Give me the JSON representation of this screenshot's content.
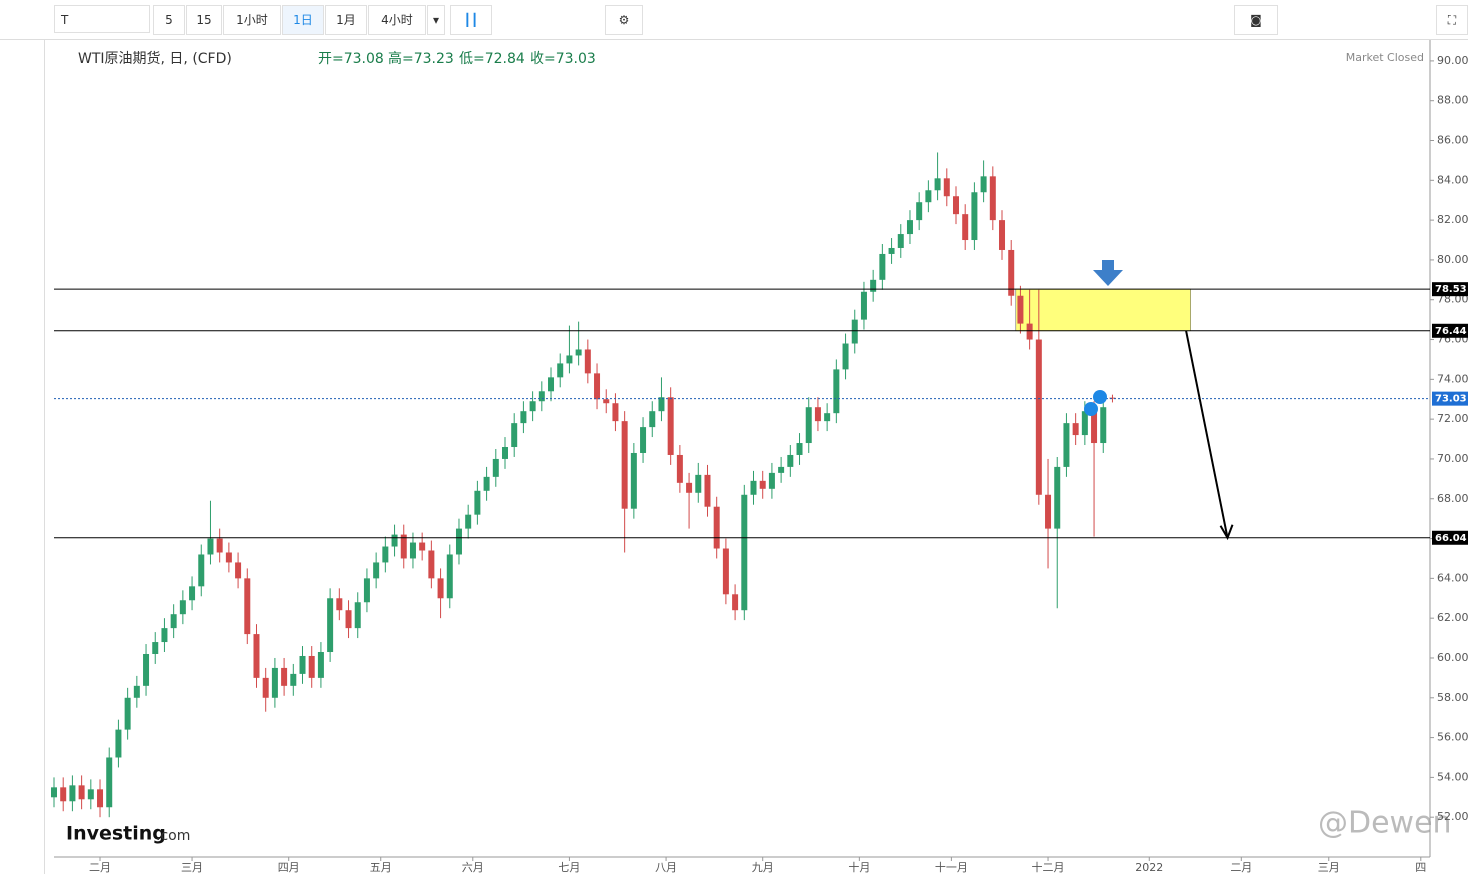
{
  "toolbar": {
    "symbol": "T",
    "intervals": [
      "5",
      "15",
      "1小时",
      "1日",
      "1月",
      "4小时"
    ]
  },
  "chart_data": {
    "type": "candlestick",
    "title": "WTI原油期货, 日, (CFD)",
    "ohlc_labels": [
      "开=73.08",
      "高=73.23",
      "低=72.84",
      "收=73.03"
    ],
    "status": "Market Closed",
    "watermark": [
      "Investing",
      ".com"
    ],
    "credit": "@Dewen",
    "up_color": "#2e9e6c",
    "down_color": "#d24a4a",
    "x": [
      0,
      2,
      4,
      6,
      8,
      10,
      12,
      14,
      16,
      18,
      20,
      22,
      24,
      26,
      28,
      30,
      32,
      34,
      36,
      38,
      40,
      42,
      44,
      46,
      48,
      50,
      52,
      54,
      56,
      58,
      60,
      62,
      64,
      66,
      68,
      70,
      72,
      74,
      76,
      78,
      80,
      82,
      84,
      86,
      88,
      90,
      92,
      94,
      96,
      98,
      100,
      102,
      104,
      106,
      108,
      110,
      112,
      114,
      116,
      118,
      120,
      122,
      124,
      126,
      128,
      130,
      132,
      134,
      136,
      138,
      140,
      142,
      144,
      146,
      148,
      150,
      152,
      154,
      156,
      158,
      160,
      162,
      164,
      166,
      168,
      170,
      172,
      174,
      176,
      178,
      180,
      182,
      184,
      186,
      188,
      190,
      192,
      194,
      196,
      198,
      200,
      202,
      204,
      206,
      208,
      210,
      212,
      214,
      216,
      218,
      220,
      222,
      224,
      226,
      228,
      230
    ],
    "open": [
      53.0,
      53.5,
      52.8,
      53.6,
      52.9,
      53.4,
      52.5,
      55.0,
      56.4,
      58.0,
      58.6,
      60.2,
      60.8,
      61.5,
      62.2,
      62.9,
      63.6,
      65.2,
      66.0,
      65.3,
      64.8,
      64.0,
      61.2,
      59.0,
      58.0,
      59.5,
      58.6,
      59.2,
      60.1,
      59.0,
      60.3,
      63.0,
      62.4,
      61.5,
      62.8,
      64.0,
      64.8,
      65.6,
      66.2,
      65.0,
      65.8,
      65.4,
      64.0,
      63.0,
      65.2,
      66.5,
      67.2,
      68.4,
      69.1,
      70.0,
      70.6,
      71.8,
      72.4,
      72.9,
      73.4,
      74.1,
      74.8,
      75.2,
      75.5,
      74.3,
      73.0,
      72.8,
      71.9,
      67.5,
      70.3,
      71.6,
      72.4,
      73.1,
      70.2,
      68.8,
      68.3,
      69.2,
      67.6,
      65.5,
      63.2,
      62.4,
      68.2,
      68.9,
      68.5,
      69.3,
      69.6,
      70.2,
      70.8,
      72.6,
      71.9,
      72.3,
      74.5,
      75.8,
      77.0,
      78.4,
      79.0,
      80.3,
      80.6,
      81.3,
      82.0,
      82.9,
      83.5,
      84.1,
      83.2,
      82.3,
      81.0,
      83.4,
      84.2,
      82.0,
      80.5,
      78.2,
      76.8,
      76.0,
      68.2,
      66.5,
      69.6,
      71.8,
      71.2,
      72.4,
      70.8,
      73.08
    ],
    "high": [
      54.0,
      54.0,
      54.1,
      54.1,
      53.9,
      53.9,
      55.5,
      56.9,
      58.5,
      59.1,
      60.7,
      61.3,
      62.0,
      62.7,
      63.4,
      64.1,
      65.7,
      67.9,
      66.5,
      65.8,
      65.3,
      64.5,
      61.7,
      59.5,
      60.0,
      60.0,
      59.7,
      60.6,
      60.6,
      60.8,
      63.5,
      63.5,
      62.9,
      63.3,
      64.5,
      65.3,
      66.1,
      66.7,
      66.7,
      66.3,
      66.3,
      65.9,
      64.5,
      65.7,
      67.0,
      67.7,
      68.9,
      69.6,
      70.5,
      71.1,
      72.3,
      72.9,
      73.4,
      73.9,
      74.6,
      75.3,
      76.7,
      76.9,
      76.0,
      74.8,
      73.5,
      73.3,
      72.4,
      70.8,
      72.1,
      72.9,
      74.1,
      73.6,
      70.7,
      69.3,
      69.8,
      69.7,
      68.1,
      66.0,
      63.7,
      68.7,
      69.4,
      69.4,
      69.8,
      70.1,
      70.7,
      71.3,
      73.1,
      73.1,
      72.8,
      75.0,
      76.3,
      77.5,
      78.9,
      79.5,
      80.8,
      81.1,
      81.8,
      82.5,
      83.4,
      84.0,
      85.4,
      84.6,
      83.7,
      82.8,
      83.9,
      85.0,
      84.7,
      82.5,
      81.0,
      78.7,
      78.5,
      78.5,
      70.0,
      70.1,
      72.3,
      72.3,
      72.9,
      72.9,
      73.1,
      73.23
    ],
    "low": [
      52.5,
      52.3,
      52.3,
      52.4,
      52.4,
      52.0,
      52.0,
      54.5,
      55.9,
      57.5,
      58.1,
      59.7,
      60.3,
      61.0,
      61.7,
      62.4,
      63.1,
      64.7,
      64.8,
      64.3,
      63.5,
      60.7,
      58.5,
      57.3,
      57.5,
      58.1,
      58.1,
      58.7,
      58.5,
      58.5,
      59.8,
      61.9,
      61.0,
      61.0,
      62.3,
      63.5,
      64.3,
      65.1,
      64.5,
      64.5,
      64.9,
      63.5,
      62.0,
      62.5,
      64.7,
      66.0,
      66.7,
      67.9,
      68.6,
      69.5,
      70.1,
      71.3,
      71.9,
      72.4,
      72.9,
      73.6,
      74.3,
      74.7,
      73.8,
      72.5,
      72.3,
      71.4,
      65.3,
      67.0,
      69.8,
      71.1,
      71.9,
      69.7,
      68.3,
      66.5,
      67.8,
      67.1,
      65.0,
      62.7,
      61.9,
      61.9,
      67.7,
      68.0,
      68.0,
      68.8,
      69.1,
      69.7,
      70.3,
      71.4,
      71.4,
      71.8,
      74.0,
      75.3,
      76.5,
      77.9,
      78.5,
      79.8,
      80.1,
      80.8,
      81.5,
      82.4,
      83.0,
      82.7,
      81.8,
      80.5,
      80.5,
      82.9,
      81.5,
      80.0,
      77.7,
      76.3,
      75.5,
      67.7,
      64.5,
      62.5,
      69.1,
      70.7,
      70.7,
      66.1,
      70.3,
      72.84
    ],
    "close": [
      53.5,
      52.8,
      53.6,
      52.9,
      53.4,
      52.5,
      55.0,
      56.4,
      58.0,
      58.6,
      60.2,
      60.8,
      61.5,
      62.2,
      62.9,
      63.6,
      65.2,
      66.0,
      65.3,
      64.8,
      64.0,
      61.2,
      59.0,
      58.0,
      59.5,
      58.6,
      59.2,
      60.1,
      59.0,
      60.3,
      63.0,
      62.4,
      61.5,
      62.8,
      64.0,
      64.8,
      65.6,
      66.2,
      65.0,
      65.8,
      65.4,
      64.0,
      63.0,
      65.2,
      66.5,
      67.2,
      68.4,
      69.1,
      70.0,
      70.6,
      71.8,
      72.4,
      72.9,
      73.4,
      74.1,
      74.8,
      75.2,
      75.5,
      74.3,
      73.0,
      72.8,
      71.9,
      67.5,
      70.3,
      71.6,
      72.4,
      73.1,
      70.2,
      68.8,
      68.3,
      69.2,
      67.6,
      65.5,
      63.2,
      62.4,
      68.2,
      68.9,
      68.5,
      69.3,
      69.6,
      70.2,
      70.8,
      72.6,
      71.9,
      72.3,
      74.5,
      75.8,
      77.0,
      78.4,
      79.0,
      80.3,
      80.6,
      81.3,
      82.0,
      82.9,
      83.5,
      84.1,
      83.2,
      82.3,
      81.0,
      83.4,
      84.2,
      82.0,
      80.5,
      78.2,
      76.8,
      76.0,
      68.2,
      66.5,
      69.6,
      71.8,
      71.2,
      72.4,
      70.8,
      72.6,
      73.03
    ],
    "xlim": [
      0,
      299
    ],
    "xticks": [
      {
        "value": 10,
        "label": "二月"
      },
      {
        "value": 30,
        "label": "三月"
      },
      {
        "value": 51,
        "label": "四月"
      },
      {
        "value": 71,
        "label": "五月"
      },
      {
        "value": 91,
        "label": "六月"
      },
      {
        "value": 112,
        "label": "七月"
      },
      {
        "value": 133,
        "label": "八月"
      },
      {
        "value": 154,
        "label": "九月"
      },
      {
        "value": 175,
        "label": "十月"
      },
      {
        "value": 195,
        "label": "十一月"
      },
      {
        "value": 216,
        "label": "十二月"
      },
      {
        "value": 238,
        "label": "2022"
      },
      {
        "value": 258,
        "label": "二月"
      },
      {
        "value": 277,
        "label": "三月"
      },
      {
        "value": 297,
        "label": "四"
      }
    ],
    "ylim": [
      50,
      91.05
    ],
    "yticks": [
      {
        "value": 52,
        "label": "52.00"
      },
      {
        "value": 54,
        "label": "54.00"
      },
      {
        "value": 56,
        "label": "56.00"
      },
      {
        "value": 58,
        "label": "58.00"
      },
      {
        "value": 60,
        "label": "60.00"
      },
      {
        "value": 62,
        "label": "62.00"
      },
      {
        "value": 64,
        "label": "64.00"
      },
      {
        "value": 66,
        "label": "66.00"
      },
      {
        "value": 68,
        "label": "68.00"
      },
      {
        "value": 70,
        "label": "70.00"
      },
      {
        "value": 72,
        "label": "72.00"
      },
      {
        "value": 74,
        "label": "74.00"
      },
      {
        "value": 76,
        "label": "76.00"
      },
      {
        "value": 78,
        "label": "78.00"
      },
      {
        "value": 80,
        "label": "80.00"
      },
      {
        "value": 82,
        "label": "82.00"
      },
      {
        "value": 84,
        "label": "84.00"
      },
      {
        "value": 86,
        "label": "86.00"
      },
      {
        "value": 88,
        "label": "88.00"
      },
      {
        "value": 90,
        "label": "90.00"
      }
    ],
    "levels": [
      78.53,
      76.44,
      66.04
    ],
    "last_price": 73.03,
    "zone": {
      "x": [
        209,
        247
      ],
      "y": [
        76.44,
        78.53
      ]
    },
    "arrow": {
      "x": [
        246,
        255
      ],
      "y": [
        76.44,
        66.04
      ]
    }
  }
}
